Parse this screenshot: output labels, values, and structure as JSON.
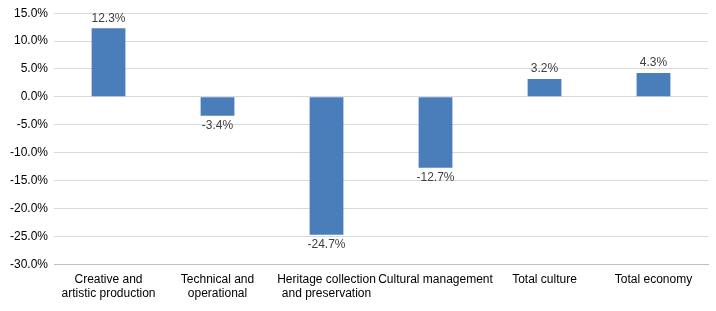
{
  "chart_data": {
    "type": "bar",
    "categories": [
      "Creative and artistic production",
      "Technical and operational",
      "Heritage collection and preservation",
      "Cultural management",
      "Total culture",
      "Total economy"
    ],
    "values": [
      12.3,
      -3.4,
      -24.7,
      -12.7,
      3.2,
      4.3
    ],
    "value_labels": [
      "12.3%",
      "-3.4%",
      "-24.7%",
      "-12.7%",
      "3.2%",
      "4.3%"
    ],
    "color": "#4a7ebb",
    "ylim": [
      -30,
      15
    ],
    "yticks": [
      {
        "value": -30,
        "label": "-30.0%"
      },
      {
        "value": -25,
        "label": "-25.0%"
      },
      {
        "value": -20,
        "label": "-20.0%"
      },
      {
        "value": -15,
        "label": "-15.0%"
      },
      {
        "value": -10,
        "label": "-10.0%"
      },
      {
        "value": -5,
        "label": "-5.0%"
      },
      {
        "value": 0,
        "label": "0.0%"
      },
      {
        "value": 5,
        "label": "5.0%"
      },
      {
        "value": 10,
        "label": "10.0%"
      },
      {
        "value": 15,
        "label": "15.0%"
      }
    ],
    "grid": true,
    "data_labels": true
  }
}
